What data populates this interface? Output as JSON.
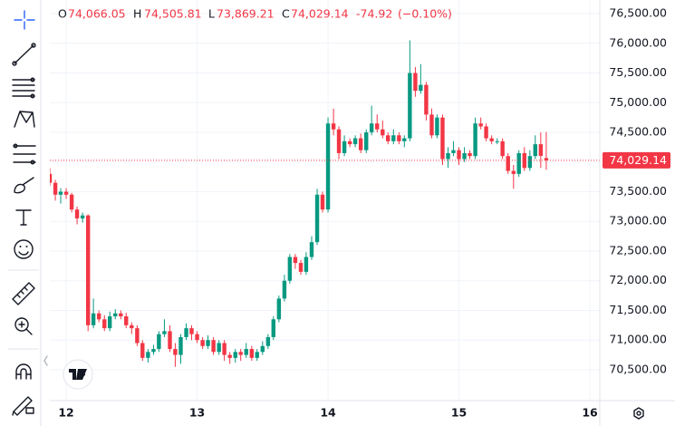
{
  "chart_data": {
    "type": "candlestick",
    "legend_ohlc": {
      "o_label": "O",
      "o": "74,066.05",
      "h_label": "H",
      "h": "74,505.81",
      "l_label": "L",
      "l": "73,869.21",
      "c_label": "C",
      "c": "74,029.14",
      "change": "-74.92",
      "change_pct": "(−0.10%)"
    },
    "x": [
      11.875,
      11.917,
      11.958,
      12,
      12.042,
      12.083,
      12.125,
      12.167,
      12.208,
      12.25,
      12.292,
      12.333,
      12.375,
      12.417,
      12.458,
      12.5,
      12.542,
      12.583,
      12.625,
      12.667,
      12.708,
      12.75,
      12.792,
      12.833,
      12.875,
      12.917,
      12.958,
      13,
      13.042,
      13.083,
      13.125,
      13.167,
      13.208,
      13.25,
      13.292,
      13.333,
      13.375,
      13.417,
      13.458,
      13.5,
      13.542,
      13.583,
      13.625,
      13.667,
      13.708,
      13.75,
      13.792,
      13.833,
      13.875,
      13.917,
      13.958,
      14,
      14.042,
      14.083,
      14.125,
      14.167,
      14.208,
      14.25,
      14.292,
      14.333,
      14.375,
      14.417,
      14.458,
      14.5,
      14.542,
      14.583,
      14.625,
      14.667,
      14.708,
      14.75,
      14.792,
      14.833,
      14.875,
      14.917,
      14.958,
      15,
      15.042,
      15.083,
      15.125,
      15.167,
      15.208,
      15.25,
      15.292,
      15.333,
      15.375,
      15.417,
      15.458,
      15.5,
      15.542,
      15.583,
      15.625,
      15.667
    ],
    "open": [
      73800,
      73650,
      73450,
      73500,
      73450,
      73200,
      73050,
      73100,
      71250,
      71450,
      71350,
      71200,
      71400,
      71450,
      71400,
      71250,
      71200,
      70950,
      70700,
      70800,
      70850,
      71100,
      71150,
      70850,
      70750,
      71050,
      71200,
      71100,
      71000,
      70900,
      71000,
      70800,
      70950,
      70750,
      70700,
      70800,
      70750,
      70850,
      70700,
      70800,
      70900,
      71050,
      71350,
      71700,
      72000,
      72400,
      72300,
      72150,
      72400,
      72650,
      73450,
      73200,
      74650,
      74550,
      74150,
      74350,
      74300,
      74400,
      74200,
      74500,
      74650,
      74550,
      74450,
      74350,
      74450,
      74350,
      74400,
      75500,
      75200,
      75300,
      74800,
      74450,
      74750,
      74050,
      74150,
      74200,
      74050,
      74150,
      74100,
      74650,
      74600,
      74400,
      74350,
      74350,
      74100,
      73850,
      73800,
      74150,
      73900,
      74100,
      74300,
      74066.05
    ],
    "high": [
      73900,
      73700,
      73560,
      73560,
      73480,
      73250,
      73150,
      73120,
      71700,
      71500,
      71420,
      71480,
      71520,
      71500,
      71460,
      71300,
      71250,
      71000,
      70850,
      70920,
      71150,
      71350,
      71250,
      70950,
      71100,
      71280,
      71250,
      71150,
      71050,
      71080,
      71050,
      71000,
      71000,
      70800,
      70850,
      70850,
      70950,
      70900,
      70850,
      70980,
      71100,
      71400,
      71750,
      72100,
      72450,
      72450,
      72350,
      72480,
      72750,
      73550,
      73500,
      74750,
      74900,
      74600,
      74450,
      74400,
      74450,
      74480,
      74550,
      74950,
      74800,
      74700,
      74500,
      74550,
      74500,
      74450,
      76050,
      75600,
      75650,
      75350,
      74900,
      74800,
      74800,
      74250,
      74350,
      74250,
      74250,
      74200,
      74750,
      74750,
      74650,
      74450,
      74400,
      74400,
      74150,
      73950,
      74200,
      74250,
      74200,
      74450,
      74500,
      74505.81
    ],
    "low": [
      73600,
      73350,
      73300,
      73380,
      73150,
      72950,
      72980,
      71150,
      71200,
      71300,
      71150,
      71150,
      71350,
      71350,
      71200,
      71100,
      70900,
      70650,
      70620,
      70750,
      70800,
      71050,
      70800,
      70550,
      70600,
      71000,
      71000,
      70950,
      70850,
      70850,
      70750,
      70750,
      70650,
      70600,
      70620,
      70650,
      70700,
      70650,
      70650,
      70750,
      70850,
      71000,
      71300,
      71650,
      71950,
      72200,
      72100,
      72100,
      72350,
      72600,
      73150,
      73150,
      74450,
      74050,
      74100,
      74250,
      74250,
      74150,
      74150,
      74450,
      74500,
      74400,
      74300,
      74300,
      74300,
      74250,
      74350,
      75100,
      75150,
      74700,
      74400,
      74400,
      73950,
      73900,
      74100,
      73950,
      74000,
      74050,
      74050,
      74550,
      74350,
      74300,
      74300,
      74050,
      73800,
      73550,
      73750,
      73850,
      73850,
      74050,
      73900,
      73869.21
    ],
    "close": [
      73650,
      73450,
      73500,
      73450,
      73200,
      73050,
      73100,
      71250,
      71450,
      71350,
      71200,
      71400,
      71450,
      71400,
      71250,
      71200,
      70950,
      70700,
      70800,
      70850,
      71100,
      71150,
      70850,
      70750,
      71050,
      71200,
      71100,
      71000,
      70900,
      71000,
      70800,
      70950,
      70750,
      70700,
      70800,
      70750,
      70850,
      70700,
      70800,
      70900,
      71050,
      71350,
      71700,
      72000,
      72400,
      72300,
      72150,
      72400,
      72650,
      73450,
      73200,
      74650,
      74550,
      74150,
      74350,
      74300,
      74400,
      74200,
      74500,
      74650,
      74550,
      74450,
      74350,
      74450,
      74350,
      74400,
      75500,
      75200,
      75300,
      74800,
      74450,
      74750,
      74050,
      74150,
      74200,
      74050,
      74150,
      74100,
      74650,
      74600,
      74400,
      74350,
      74350,
      74100,
      73850,
      73800,
      74150,
      73900,
      74100,
      74300,
      74104.06,
      74029.14
    ],
    "up_color": "#089981",
    "down_color": "#f23645",
    "last_price": {
      "value": 74029.14,
      "label": "74,029.14"
    },
    "xlim": [
      11.875,
      16.076
    ],
    "xticks": [
      12,
      13,
      14,
      15,
      16
    ],
    "ylim": [
      69980,
      76730
    ],
    "yticks": [
      {
        "value": 70500,
        "label": "70,500.00"
      },
      {
        "value": 71000,
        "label": "71,000.00"
      },
      {
        "value": 71500,
        "label": "71,500.00"
      },
      {
        "value": 72000,
        "label": "72,000.00"
      },
      {
        "value": 72500,
        "label": "72,500.00"
      },
      {
        "value": 73000,
        "label": "73,000.00"
      },
      {
        "value": 73500,
        "label": "73,500.00"
      },
      {
        "value": 74000,
        "label": "74,000.00"
      },
      {
        "value": 74500,
        "label": "74,500.00"
      },
      {
        "value": 75000,
        "label": "75,000.00"
      },
      {
        "value": 75500,
        "label": "75,500.00"
      },
      {
        "value": 76000,
        "label": "76,000.00"
      },
      {
        "value": 76500,
        "label": "76,500.00"
      }
    ],
    "grid": true
  }
}
